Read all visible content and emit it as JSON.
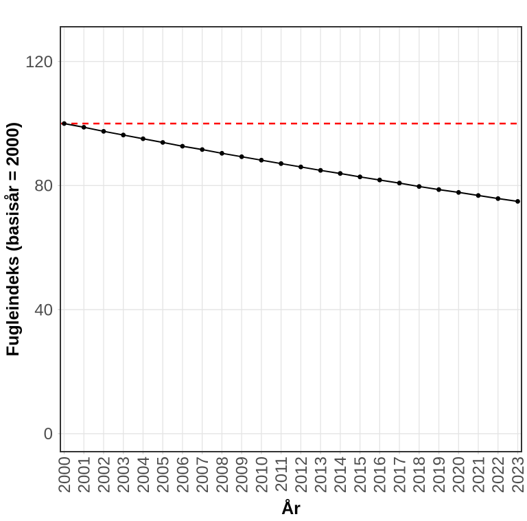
{
  "chart_data": {
    "type": "line",
    "title": "",
    "xlabel": "År",
    "ylabel": "Fugleindeks (basisår = 2000)",
    "x": [
      2000,
      2001,
      2002,
      2003,
      2004,
      2005,
      2006,
      2007,
      2008,
      2009,
      2010,
      2011,
      2012,
      2013,
      2014,
      2015,
      2016,
      2017,
      2018,
      2019,
      2020,
      2021,
      2022,
      2023
    ],
    "series": [
      {
        "name": "Fugleindeks",
        "marker": "filled-circle",
        "color": "#000000",
        "values": [
          100.0,
          98.8,
          97.5,
          96.3,
          95.1,
          93.9,
          92.7,
          91.6,
          90.4,
          89.3,
          88.2,
          87.1,
          86.0,
          84.9,
          83.9,
          82.8,
          81.8,
          80.8,
          79.7,
          78.7,
          77.8,
          76.8,
          75.8,
          74.9
        ]
      }
    ],
    "reference_line": {
      "value": 100,
      "color": "#FF0000",
      "style": "dashed"
    },
    "y_ticks": [
      0,
      40,
      80,
      120
    ],
    "ylim": [
      -5.8,
      131.2
    ],
    "grid": "major",
    "legend": false,
    "colors": {
      "background": "#FFFFFF",
      "panel_background": "#FFFFFF",
      "panel_border": "#333333",
      "gridline": "#E4E4E4",
      "tick_mark": "#C9C9C9",
      "tick_label": "#4D4D4D",
      "axis_title": "#000000",
      "line": "#000000",
      "point": "#000000"
    }
  }
}
